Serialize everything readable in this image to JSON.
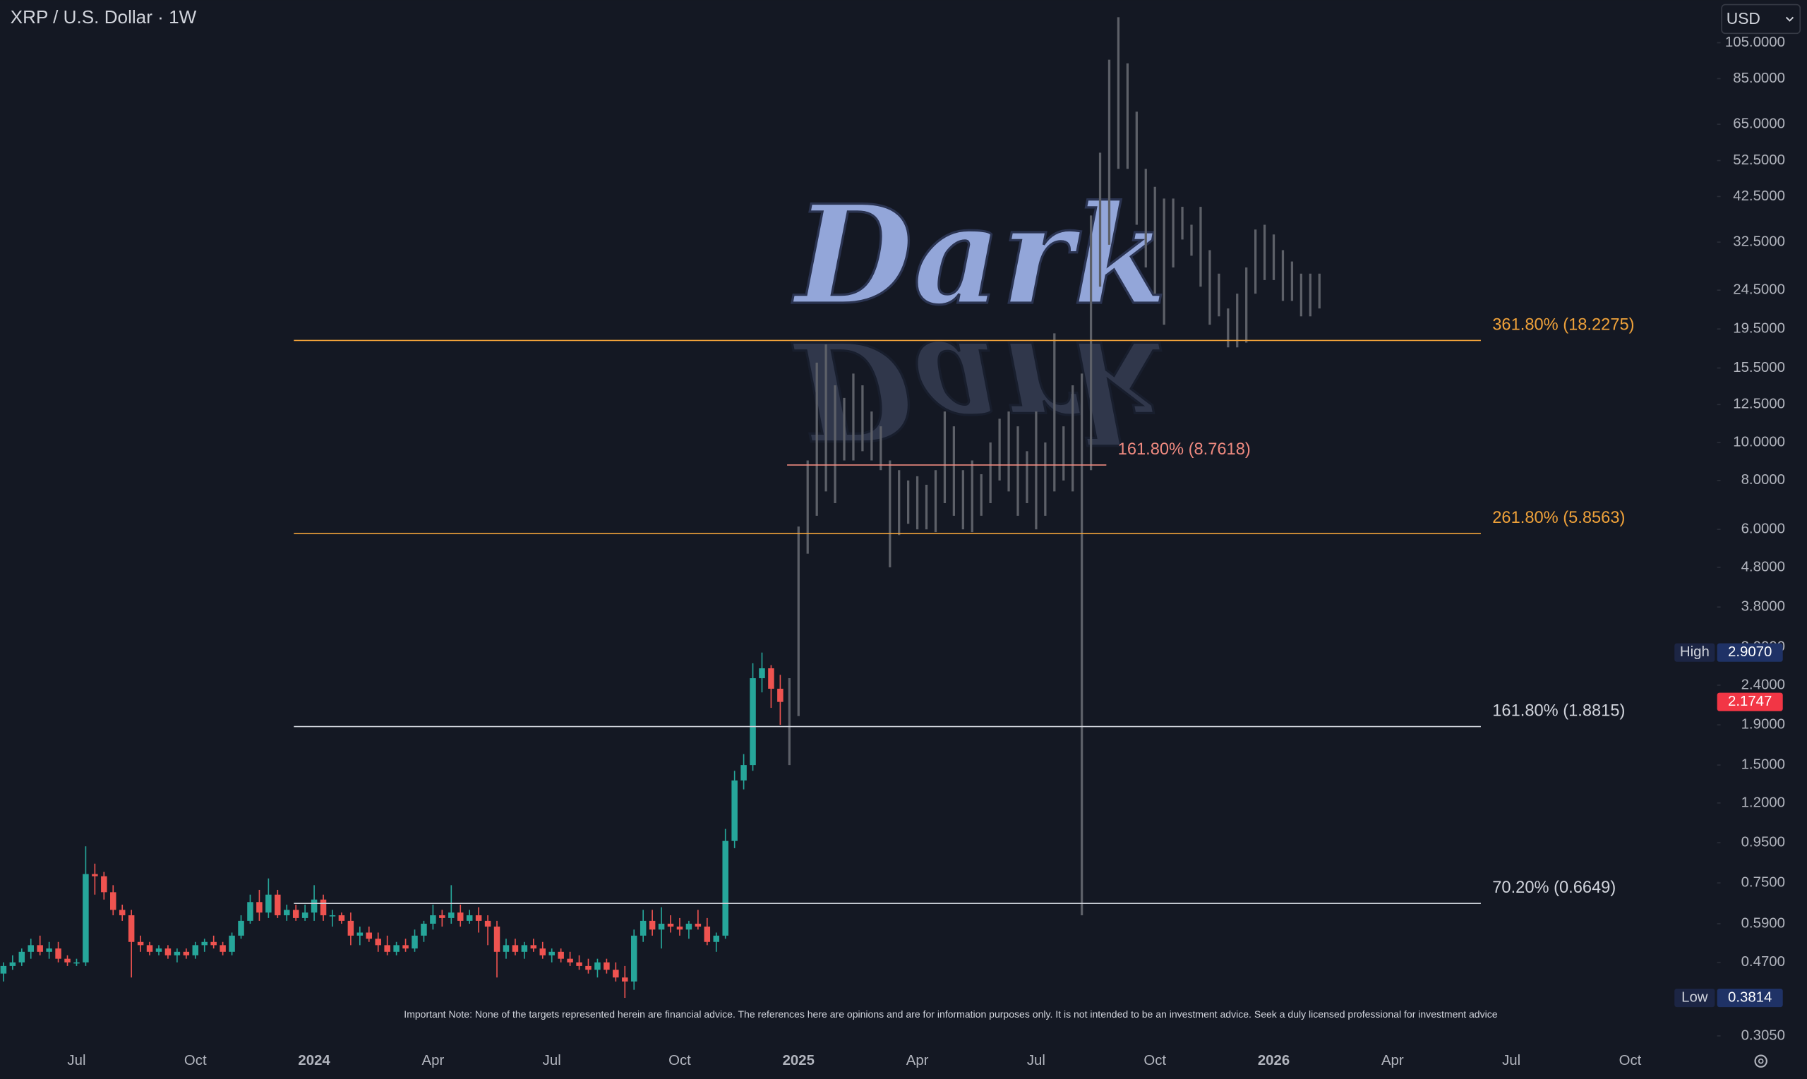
{
  "chart_data": {
    "type": "candlestick",
    "title": "XRP / U.S. Dollar · 1W",
    "currency": "USD",
    "watermark": "Dark",
    "note": "Important Note: None of the targets represented herein are financial advice. The references here are opinions and are for information purposes only. It is not intended to be an investment advice. Seek a duly licensed professional for investment advice",
    "log_scale": true,
    "grid": false,
    "up_color": "#26a69a",
    "down_color": "#ef5350",
    "projection_color": "#5d6068",
    "ylim": [
      0.293,
      135
    ],
    "yticks": [
      {
        "value": 105,
        "label": "105.0000"
      },
      {
        "value": 85,
        "label": "85.0000"
      },
      {
        "value": 65,
        "label": "65.0000"
      },
      {
        "value": 52.5,
        "label": "52.5000"
      },
      {
        "value": 42.5,
        "label": "42.5000"
      },
      {
        "value": 32.5,
        "label": "32.5000"
      },
      {
        "value": 24.5,
        "label": "24.5000"
      },
      {
        "value": 19.5,
        "label": "19.5000"
      },
      {
        "value": 15.5,
        "label": "15.5000"
      },
      {
        "value": 12.5,
        "label": "12.5000"
      },
      {
        "value": 10,
        "label": "10.0000"
      },
      {
        "value": 8,
        "label": "8.0000"
      },
      {
        "value": 6,
        "label": "6.0000"
      },
      {
        "value": 4.8,
        "label": "4.8000"
      },
      {
        "value": 3.8,
        "label": "3.8000"
      },
      {
        "value": 3,
        "label": "3.0000"
      },
      {
        "value": 2.4,
        "label": "2.4000"
      },
      {
        "value": 1.9,
        "label": "1.9000"
      },
      {
        "value": 1.5,
        "label": "1.5000"
      },
      {
        "value": 1.2,
        "label": "1.2000"
      },
      {
        "value": 0.95,
        "label": "0.9500"
      },
      {
        "value": 0.75,
        "label": "0.7500"
      },
      {
        "value": 0.59,
        "label": "0.5900"
      },
      {
        "value": 0.47,
        "label": "0.4700"
      },
      {
        "value": 0.305,
        "label": "0.3050"
      }
    ],
    "categories": [
      null,
      null,
      null,
      null,
      null,
      null,
      null,
      null,
      "Jul",
      null,
      null,
      null,
      null,
      null,
      null,
      null,
      null,
      null,
      null,
      null,
      null,
      "Oct",
      null,
      null,
      null,
      null,
      null,
      null,
      null,
      null,
      null,
      null,
      null,
      null,
      "2024",
      null,
      null,
      null,
      null,
      null,
      null,
      null,
      null,
      null,
      null,
      null,
      null,
      "Apr",
      null,
      null,
      null,
      null,
      null,
      null,
      null,
      null,
      null,
      null,
      null,
      null,
      "Jul",
      null,
      null,
      null,
      null,
      null,
      null,
      null,
      null,
      null,
      null,
      null,
      null,
      null,
      "Oct",
      null,
      null,
      null,
      null,
      null,
      null,
      null,
      null,
      null,
      null,
      null,
      null,
      "2025",
      null,
      null,
      null,
      null,
      null,
      null,
      null,
      null,
      null,
      null,
      null,
      null,
      "Apr",
      null,
      null,
      null,
      null,
      null,
      null,
      null,
      null,
      null,
      null,
      null,
      null,
      "Jul",
      null,
      null,
      null,
      null,
      null,
      null,
      null,
      null,
      null,
      null,
      null,
      null,
      "Oct",
      null,
      null,
      null,
      null,
      null,
      null,
      null,
      null,
      null,
      null,
      null,
      null,
      "2026",
      null,
      null,
      null,
      null,
      null,
      null,
      null,
      null,
      null,
      null,
      null,
      null,
      "Apr",
      null,
      null,
      null,
      null,
      null,
      null,
      null,
      null,
      null,
      null,
      null,
      null,
      "Jul",
      null,
      null,
      null,
      null,
      null,
      null,
      null,
      null,
      null,
      null,
      null,
      null,
      "Oct"
    ],
    "open": [
      0.44,
      0.46,
      0.47,
      0.5,
      0.52,
      0.5,
      0.51,
      0.48,
      0.47,
      0.47,
      0.79,
      0.78,
      0.71,
      0.64,
      0.62,
      0.53,
      0.52,
      0.5,
      0.51,
      0.49,
      0.5,
      0.49,
      0.52,
      0.53,
      0.52,
      0.5,
      0.55,
      0.6,
      0.67,
      0.63,
      0.7,
      0.62,
      0.64,
      0.61,
      0.63,
      0.68,
      0.62,
      0.62,
      0.6,
      0.55,
      0.56,
      0.54,
      0.52,
      0.5,
      0.52,
      0.51,
      0.55,
      0.59,
      0.62,
      0.61,
      0.63,
      0.6,
      0.62,
      0.6,
      0.58,
      0.5,
      0.52,
      0.5,
      0.52,
      0.51,
      0.49,
      0.5,
      0.48,
      0.47,
      0.46,
      0.45,
      0.47,
      0.45,
      0.43,
      0.42,
      0.55,
      0.6,
      0.57,
      0.59,
      0.58,
      0.57,
      0.59,
      0.58,
      0.53,
      0.55,
      0.96,
      1.37,
      1.5,
      2.5,
      2.65,
      2.35,
      null,
      null,
      null,
      null,
      null,
      null,
      null,
      null,
      null,
      null,
      null,
      null,
      null,
      null,
      null,
      null,
      null,
      null,
      null,
      null,
      null,
      null,
      null,
      null,
      null,
      null,
      null,
      null,
      null,
      null,
      null,
      null,
      null,
      null,
      null,
      null,
      null,
      null,
      null,
      null,
      null,
      null,
      null,
      null,
      null,
      null,
      null,
      null,
      null,
      null,
      null,
      null,
      null,
      null,
      null,
      null,
      null,
      null,
      null,
      null,
      null,
      null,
      null,
      null,
      null,
      null,
      null,
      null,
      null,
      null,
      null,
      null,
      null,
      null,
      null,
      null,
      null,
      null,
      null,
      null,
      null,
      null,
      null,
      null,
      null,
      null,
      null,
      null,
      null,
      null,
      null,
      null,
      null
    ],
    "high": [
      0.47,
      0.49,
      0.51,
      0.54,
      0.55,
      0.53,
      0.53,
      0.49,
      0.48,
      0.93,
      0.84,
      0.8,
      0.74,
      0.66,
      0.64,
      0.55,
      0.53,
      0.52,
      0.52,
      0.51,
      0.51,
      0.53,
      0.54,
      0.55,
      0.53,
      0.56,
      0.62,
      0.7,
      0.72,
      0.77,
      0.72,
      0.66,
      0.66,
      0.66,
      0.74,
      0.7,
      0.64,
      0.63,
      0.63,
      0.58,
      0.58,
      0.56,
      0.55,
      0.53,
      0.54,
      0.57,
      0.6,
      0.66,
      0.64,
      0.74,
      0.66,
      0.64,
      0.65,
      0.62,
      0.6,
      0.54,
      0.54,
      0.53,
      0.54,
      0.53,
      0.51,
      0.51,
      0.5,
      0.49,
      0.48,
      0.48,
      0.48,
      0.47,
      0.46,
      0.57,
      0.64,
      0.64,
      0.65,
      0.62,
      0.61,
      0.6,
      0.64,
      0.61,
      0.56,
      1.03,
      1.45,
      1.6,
      2.73,
      2.907,
      2.7,
      2.55,
      null,
      null,
      null,
      null,
      null,
      null,
      null,
      null,
      null,
      null,
      null,
      null,
      null,
      null,
      null,
      null,
      null,
      null,
      null,
      null,
      null,
      null,
      null,
      null,
      null,
      null,
      null,
      null,
      null,
      null,
      null,
      null,
      null,
      null,
      null,
      null,
      null,
      null,
      null,
      null,
      null,
      null,
      null,
      null,
      null,
      null,
      null,
      null,
      null,
      null,
      null,
      null,
      null,
      null,
      null,
      null,
      null,
      null,
      null,
      null,
      null,
      null,
      null,
      null,
      null,
      null,
      null,
      null,
      null,
      null,
      null,
      null,
      null,
      null,
      null,
      null,
      null,
      null,
      null,
      null,
      null,
      null,
      null,
      null,
      null,
      null,
      null,
      null,
      null,
      null,
      null,
      null,
      null
    ],
    "low": [
      0.42,
      0.45,
      0.46,
      0.48,
      0.49,
      0.48,
      0.47,
      0.46,
      0.46,
      0.46,
      0.7,
      0.68,
      0.62,
      0.6,
      0.43,
      0.5,
      0.49,
      0.49,
      0.48,
      0.47,
      0.48,
      0.48,
      0.5,
      0.51,
      0.49,
      0.49,
      0.54,
      0.59,
      0.6,
      0.61,
      0.61,
      0.6,
      0.6,
      0.6,
      0.6,
      0.6,
      0.58,
      0.59,
      0.52,
      0.52,
      0.53,
      0.5,
      0.49,
      0.49,
      0.5,
      0.5,
      0.53,
      0.57,
      0.58,
      0.59,
      0.58,
      0.59,
      0.56,
      0.52,
      0.43,
      0.48,
      0.49,
      0.48,
      0.5,
      0.48,
      0.47,
      0.47,
      0.46,
      0.45,
      0.44,
      0.43,
      0.44,
      0.42,
      0.3814,
      0.4,
      0.53,
      0.55,
      0.51,
      0.56,
      0.55,
      0.54,
      0.57,
      0.52,
      0.5,
      0.54,
      0.92,
      1.3,
      1.45,
      2.3,
      2.1,
      1.9,
      null,
      null,
      null,
      null,
      null,
      null,
      null,
      null,
      null,
      null,
      null,
      null,
      null,
      null,
      null,
      null,
      null,
      null,
      null,
      null,
      null,
      null,
      null,
      null,
      null,
      null,
      null,
      null,
      null,
      null,
      null,
      null,
      null,
      null,
      null,
      null,
      null,
      null,
      null,
      null,
      null,
      null,
      null,
      null,
      null,
      null,
      null,
      null,
      null,
      null,
      null,
      null,
      null,
      null,
      null,
      null,
      null,
      null,
      null,
      null,
      null,
      null,
      null,
      null,
      null,
      null,
      null,
      null,
      null,
      null,
      null,
      null,
      null,
      null,
      null,
      null,
      null,
      null,
      null,
      null,
      null,
      null,
      null,
      null,
      null,
      null,
      null,
      null,
      null,
      null,
      null,
      null,
      null
    ],
    "close": [
      0.46,
      0.47,
      0.5,
      0.52,
      0.5,
      0.51,
      0.48,
      0.47,
      0.47,
      0.79,
      0.78,
      0.71,
      0.64,
      0.62,
      0.53,
      0.52,
      0.5,
      0.51,
      0.49,
      0.5,
      0.49,
      0.52,
      0.53,
      0.52,
      0.5,
      0.55,
      0.6,
      0.67,
      0.63,
      0.7,
      0.62,
      0.64,
      0.61,
      0.63,
      0.68,
      0.62,
      0.62,
      0.6,
      0.55,
      0.56,
      0.54,
      0.52,
      0.5,
      0.52,
      0.51,
      0.55,
      0.59,
      0.62,
      0.61,
      0.63,
      0.6,
      0.62,
      0.6,
      0.58,
      0.5,
      0.52,
      0.5,
      0.52,
      0.51,
      0.49,
      0.5,
      0.48,
      0.47,
      0.46,
      0.45,
      0.47,
      0.45,
      0.43,
      0.42,
      0.55,
      0.6,
      0.57,
      0.59,
      0.58,
      0.57,
      0.59,
      0.58,
      0.53,
      0.55,
      0.96,
      1.37,
      1.5,
      2.5,
      2.65,
      2.35,
      2.1747,
      null,
      null,
      null,
      null,
      null,
      null,
      null,
      null,
      null,
      null,
      null,
      null,
      null,
      null,
      null,
      null,
      null,
      null,
      null,
      null,
      null,
      null,
      null,
      null,
      null,
      null,
      null,
      null,
      null,
      null,
      null,
      null,
      null,
      null,
      null,
      null,
      null,
      null,
      null,
      null,
      null,
      null,
      null,
      null,
      null,
      null,
      null,
      null,
      null,
      null,
      null,
      null,
      null,
      null,
      null,
      null,
      null,
      null,
      null,
      null,
      null,
      null,
      null,
      null,
      null,
      null,
      null,
      null,
      null,
      null,
      null,
      null,
      null,
      null,
      null,
      null,
      null,
      null,
      null,
      null,
      null,
      null,
      null,
      null,
      null,
      null,
      null,
      null,
      null,
      null,
      null,
      null,
      null
    ],
    "projection": {
      "high": [
        null,
        null,
        null,
        null,
        null,
        null,
        null,
        null,
        null,
        null,
        null,
        null,
        null,
        null,
        null,
        null,
        null,
        null,
        null,
        null,
        null,
        null,
        null,
        null,
        null,
        null,
        null,
        null,
        null,
        null,
        null,
        null,
        null,
        null,
        null,
        null,
        null,
        null,
        null,
        null,
        null,
        null,
        null,
        null,
        null,
        null,
        null,
        null,
        null,
        null,
        null,
        null,
        null,
        null,
        null,
        null,
        null,
        null,
        null,
        null,
        null,
        null,
        null,
        null,
        null,
        null,
        null,
        null,
        null,
        null,
        null,
        null,
        null,
        null,
        null,
        null,
        null,
        null,
        null,
        null,
        null,
        null,
        null,
        null,
        null,
        null,
        2.5,
        6.1,
        9.0,
        16,
        17.8,
        14,
        13,
        15,
        14,
        12,
        11,
        9.0,
        8.5,
        8.0,
        8.2,
        7.8,
        8.5,
        12,
        11,
        8.5,
        9.0,
        8.3,
        10,
        11.5,
        12,
        11,
        9.5,
        12,
        10,
        19,
        11,
        14,
        15,
        38,
        55,
        95,
        122,
        93,
        70,
        50,
        45,
        42,
        42,
        40,
        36,
        40,
        31,
        27,
        22,
        24,
        28,
        35,
        36,
        34,
        31,
        29,
        27,
        27,
        27,
        null,
        null,
        null,
        null,
        null,
        null,
        null,
        null,
        null,
        null,
        null,
        null,
        null,
        null,
        null,
        null,
        null,
        null,
        null,
        null,
        null,
        null,
        null,
        null,
        null,
        null,
        null,
        null,
        null,
        null,
        null,
        null,
        null,
        null
      ],
      "low": [
        null,
        null,
        null,
        null,
        null,
        null,
        null,
        null,
        null,
        null,
        null,
        null,
        null,
        null,
        null,
        null,
        null,
        null,
        null,
        null,
        null,
        null,
        null,
        null,
        null,
        null,
        null,
        null,
        null,
        null,
        null,
        null,
        null,
        null,
        null,
        null,
        null,
        null,
        null,
        null,
        null,
        null,
        null,
        null,
        null,
        null,
        null,
        null,
        null,
        null,
        null,
        null,
        null,
        null,
        null,
        null,
        null,
        null,
        null,
        null,
        null,
        null,
        null,
        null,
        null,
        null,
        null,
        null,
        null,
        null,
        null,
        null,
        null,
        null,
        null,
        null,
        null,
        null,
        null,
        null,
        null,
        null,
        null,
        null,
        null,
        null,
        1.5,
        2.0,
        5.2,
        6.5,
        7.5,
        7.0,
        9,
        9,
        9.5,
        9,
        8.5,
        4.8,
        5.8,
        6.2,
        6.0,
        6.0,
        5.9,
        7.0,
        6.5,
        6.0,
        5.9,
        6.5,
        7.0,
        8.0,
        7.5,
        6.5,
        7.0,
        6.0,
        6.5,
        7.5,
        8.0,
        7.5,
        0.62,
        8.5,
        25,
        32,
        50,
        50,
        36,
        28,
        24,
        20,
        28,
        33,
        30,
        25,
        20,
        21,
        17.5,
        17.5,
        18,
        24,
        26,
        26,
        23,
        23,
        21,
        21,
        22,
        null,
        null,
        null,
        null,
        null,
        null,
        null,
        null,
        null,
        null,
        null,
        null,
        null,
        null,
        null,
        null,
        null,
        null,
        null,
        null,
        null,
        null,
        null,
        null,
        null,
        null,
        null,
        null,
        null,
        null,
        null,
        null,
        null,
        null
      ]
    },
    "levels": [
      {
        "label": "361.80% (18.2275)",
        "value": 18.2275,
        "color": "#f0a23a"
      },
      {
        "label": "161.80% (8.7618)",
        "value": 8.7618,
        "color": "#f08a80"
      },
      {
        "label": "261.80% (5.8563)",
        "value": 5.8563,
        "color": "#f0a23a"
      },
      {
        "label": "161.80% (1.8815)",
        "value": 1.8815,
        "color": "#d1d4dc"
      },
      {
        "label": "70.20% (0.6649)",
        "value": 0.6649,
        "color": "#d1d4dc"
      }
    ],
    "high_marker": {
      "label": "High",
      "value": 2.907,
      "value_label": "2.9070"
    },
    "low_marker": {
      "label": "Low",
      "value": 0.3814
    },
    "last_price": {
      "value": 2.1747,
      "color": "#f23645"
    }
  }
}
